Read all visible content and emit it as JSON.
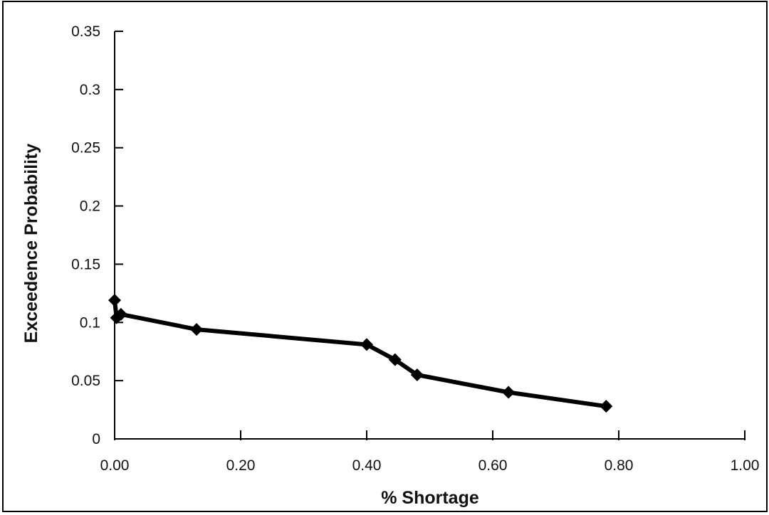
{
  "chart_data": {
    "type": "line",
    "title": "",
    "xlabel": "% Shortage",
    "ylabel": "Exceedence Probability",
    "xlim": [
      0,
      1
    ],
    "ylim": [
      0,
      0.35
    ],
    "x_ticks": [
      "0.00",
      "0.20",
      "0.40",
      "0.60",
      "0.80",
      "1.00"
    ],
    "y_ticks": [
      "0",
      "0.05",
      "0.1",
      "0.15",
      "0.2",
      "0.25",
      "0.3",
      "0.35"
    ],
    "grid": false,
    "legend": "none",
    "series": [
      {
        "color": "#000000",
        "marker": "diamond",
        "x": [
          0.0,
          0.003,
          0.01,
          0.13,
          0.4,
          0.445,
          0.48,
          0.625,
          0.78
        ],
        "y": [
          0.119,
          0.104,
          0.107,
          0.094,
          0.081,
          0.068,
          0.055,
          0.04,
          0.028
        ]
      }
    ]
  }
}
